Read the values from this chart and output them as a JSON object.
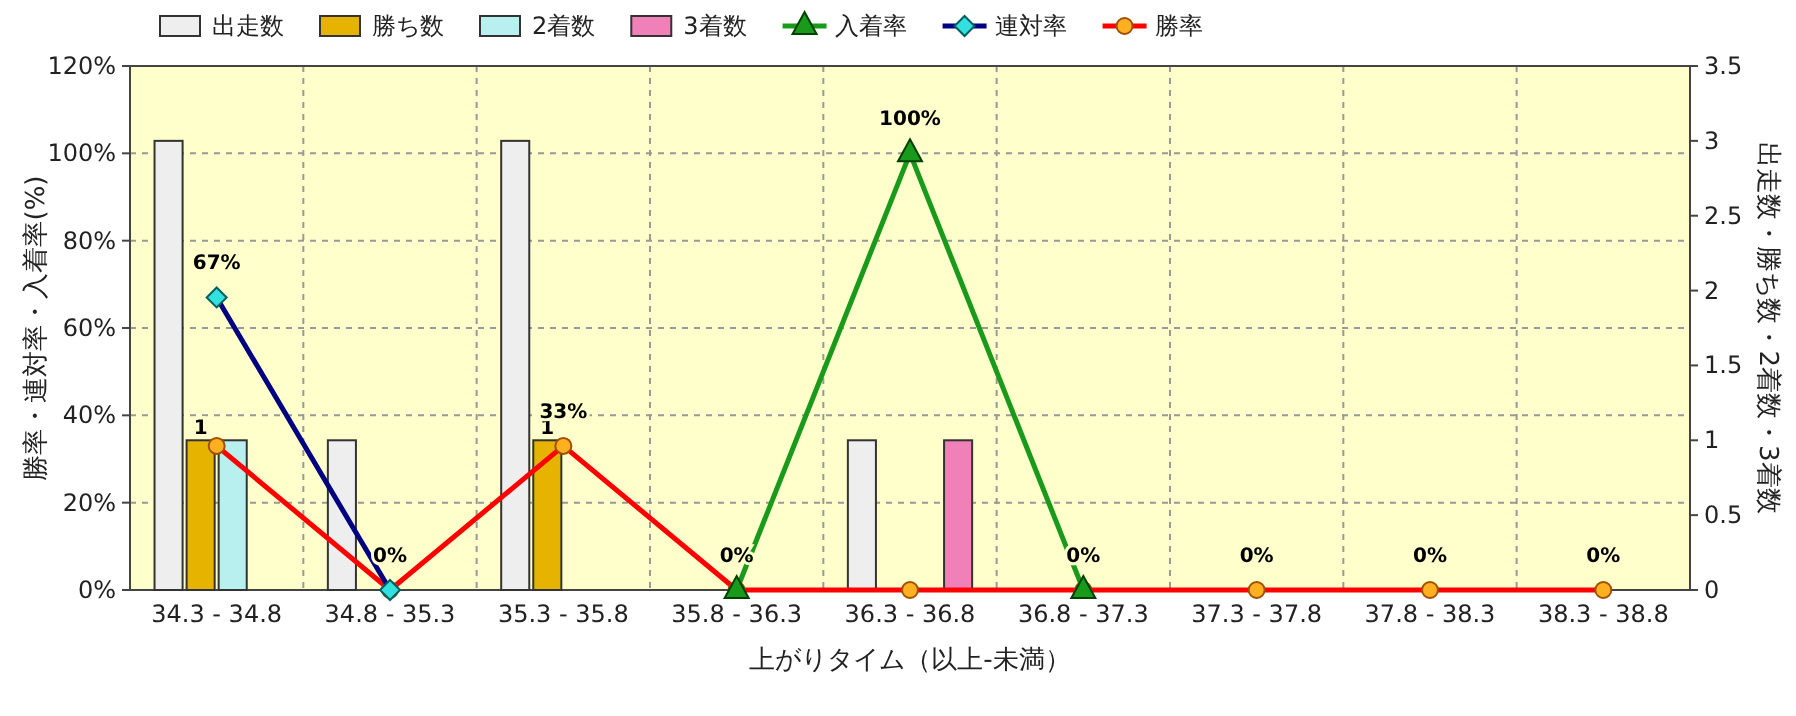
{
  "chart_data": {
    "type": "bar",
    "xlabel": "上がりタイム（以上-未満）",
    "ylabel": "勝率・連対率・入着率(%)",
    "y2label": "出走数・勝ち数・2着数・3着数",
    "categories": [
      "34.3 - 34.8",
      "34.8 - 35.3",
      "35.3 - 35.8",
      "35.8 - 36.3",
      "36.3 - 36.8",
      "36.8 - 37.3",
      "37.3 - 37.8",
      "37.8 - 38.3",
      "38.3 - 38.8"
    ],
    "series": [
      {
        "name": "出走数",
        "axis": "y2",
        "color": "#eeeeee",
        "values": [
          3,
          1,
          3,
          0,
          1,
          0,
          0,
          0,
          0
        ]
      },
      {
        "name": "勝ち数",
        "axis": "y2",
        "color": "#e6b400",
        "values": [
          1,
          0,
          1,
          0,
          0,
          0,
          0,
          0,
          0
        ],
        "value_labels": [
          "1",
          null,
          "1",
          null,
          null,
          null,
          null,
          null,
          null
        ]
      },
      {
        "name": "2着数",
        "axis": "y2",
        "color": "#b8f0f0",
        "values": [
          1,
          0,
          0,
          0,
          0,
          0,
          0,
          0,
          0
        ]
      },
      {
        "name": "3着数",
        "axis": "y2",
        "color": "#f080b8",
        "values": [
          0,
          0,
          0,
          0,
          1,
          0,
          0,
          0,
          0
        ]
      },
      {
        "name": "入着率",
        "type": "line",
        "axis": "y",
        "color": "#1a9a1a",
        "marker": "triangle",
        "values": [
          null,
          null,
          null,
          0,
          100,
          0,
          null,
          null,
          null
        ],
        "value_labels": [
          null,
          null,
          null,
          null,
          "100%",
          null,
          null,
          null,
          null
        ]
      },
      {
        "name": "連対率",
        "type": "line",
        "axis": "y",
        "color": "#000080",
        "marker": "diamond",
        "values": [
          67,
          0,
          null,
          null,
          null,
          null,
          null,
          null,
          null
        ],
        "value_labels": [
          "67%",
          null,
          null,
          null,
          null,
          null,
          null,
          null,
          null
        ]
      },
      {
        "name": "勝率",
        "type": "line",
        "axis": "y",
        "color": "#ff0000",
        "marker": "circle",
        "values": [
          33,
          0,
          33,
          0,
          0,
          0,
          0,
          0,
          0
        ],
        "value_labels": [
          null,
          "0%",
          "33%",
          "0%",
          null,
          "0%",
          "0%",
          "0%",
          "0%"
        ]
      }
    ],
    "ylim": [
      0,
      120
    ],
    "yticks": [
      {
        "value": 0,
        "label": "0%"
      },
      {
        "value": 20,
        "label": "20%"
      },
      {
        "value": 40,
        "label": "40%"
      },
      {
        "value": 60,
        "label": "60%"
      },
      {
        "value": 80,
        "label": "80%"
      },
      {
        "value": 100,
        "label": "100%"
      },
      {
        "value": 120,
        "label": "120%"
      }
    ],
    "y2lim": [
      0,
      3.5
    ],
    "y2ticks": [
      0,
      0.5,
      1,
      1.5,
      2,
      2.5,
      3,
      3.5
    ],
    "grid": true,
    "legend": "top left",
    "line_style": "solid"
  }
}
